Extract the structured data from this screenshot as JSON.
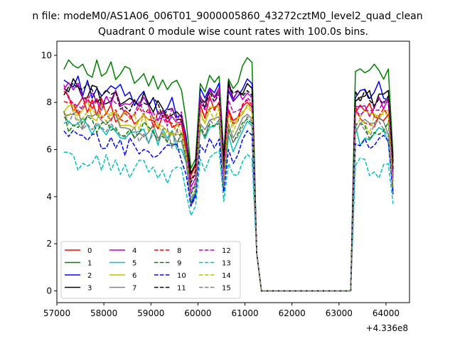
{
  "chart_data": {
    "type": "line",
    "title_main": "n file: modeM0/AS1A06_006T01_9000005860_43272cztM0_level2_quad_clean",
    "title_sub": "Quadrant 0 module wise count rates with 100.0s bins.",
    "xlabel": "",
    "ylabel": "",
    "x_offset_label": "+4.336e8",
    "xlim": [
      57000,
      64500
    ],
    "ylim": [
      -0.5,
      10.6
    ],
    "x_ticks": [
      57000,
      58000,
      59000,
      60000,
      61000,
      62000,
      63000,
      64000
    ],
    "x_tick_labels": [
      "57000",
      "58000",
      "59000",
      "60000",
      "61000",
      "62000",
      "63000",
      "64000"
    ],
    "y_ticks": [
      0,
      2,
      4,
      6,
      8,
      10
    ],
    "y_tick_labels": [
      "0",
      "2",
      "4",
      "6",
      "8",
      "10"
    ],
    "grid": false,
    "legend_position": "lower-left",
    "legend_columns": 4,
    "segments": [
      {
        "x_start": 57150,
        "x_end": 61050,
        "step": 100
      },
      {
        "x_start": 63250,
        "x_end": 64150,
        "step": 100
      }
    ],
    "series": [
      {
        "name": "0",
        "color": "#ff0000",
        "dashed": false,
        "base": 8.1,
        "end": 7.0,
        "post": 7.6,
        "dip": 4.9,
        "pk1": 7.9,
        "pk2": 7.7,
        "pk3": 8.0
      },
      {
        "name": "1",
        "color": "#008000",
        "dashed": false,
        "base": 9.8,
        "end": 8.5,
        "post": 9.2,
        "dip": 5.2,
        "pk1": 8.8,
        "pk2": 9.0,
        "pk3": 9.9
      },
      {
        "name": "2",
        "color": "#0000ff",
        "dashed": false,
        "base": 8.9,
        "end": 7.7,
        "post": 8.5,
        "dip": 3.7,
        "pk1": 8.6,
        "pk2": 8.5,
        "pk3": 9.0
      },
      {
        "name": "3",
        "color": "#000000",
        "dashed": false,
        "base": 8.7,
        "end": 7.6,
        "post": 8.2,
        "dip": 5.0,
        "pk1": 8.2,
        "pk2": 8.9,
        "pk3": 8.8
      },
      {
        "name": "4",
        "color": "#bf00bf",
        "dashed": false,
        "base": 8.6,
        "end": 7.4,
        "post": 7.8,
        "dip": 4.4,
        "pk1": 8.3,
        "pk2": 8.7,
        "pk3": 8.4
      },
      {
        "name": "5",
        "color": "#00bfbf",
        "dashed": false,
        "base": 7.0,
        "end": 6.4,
        "post": 6.6,
        "dip": 3.8,
        "pk1": 6.9,
        "pk2": 6.6,
        "pk3": 7.2
      },
      {
        "name": "6",
        "color": "#bfbf00",
        "dashed": false,
        "base": 7.9,
        "end": 6.9,
        "post": 7.3,
        "dip": 3.6,
        "pk1": 7.6,
        "pk2": 7.6,
        "pk3": 7.9
      },
      {
        "name": "7",
        "color": "#808080",
        "dashed": false,
        "base": 7.5,
        "end": 6.5,
        "post": 7.0,
        "dip": 3.6,
        "pk1": 7.1,
        "pk2": 7.1,
        "pk3": 7.5
      },
      {
        "name": "8",
        "color": "#ff0000",
        "dashed": true,
        "base": 8.0,
        "end": 7.1,
        "post": 7.4,
        "dip": 4.7,
        "pk1": 7.7,
        "pk2": 7.6,
        "pk3": 8.1
      },
      {
        "name": "9",
        "color": "#008000",
        "dashed": true,
        "base": 7.2,
        "end": 6.6,
        "post": 6.8,
        "dip": 4.1,
        "pk1": 7.0,
        "pk2": 6.9,
        "pk3": 7.3
      },
      {
        "name": "10",
        "color": "#0000ff",
        "dashed": true,
        "base": 6.5,
        "end": 5.8,
        "post": 6.3,
        "dip": 3.6,
        "pk1": 6.2,
        "pk2": 6.0,
        "pk3": 6.8
      },
      {
        "name": "11",
        "color": "#000000",
        "dashed": true,
        "base": 8.6,
        "end": 7.6,
        "post": 8.1,
        "dip": 4.6,
        "pk1": 8.1,
        "pk2": 8.8,
        "pk3": 8.5
      },
      {
        "name": "12",
        "color": "#bf00bf",
        "dashed": true,
        "base": 8.3,
        "end": 7.3,
        "post": 7.7,
        "dip": 4.2,
        "pk1": 8.0,
        "pk2": 8.1,
        "pk3": 8.2
      },
      {
        "name": "13",
        "color": "#00bfbf",
        "dashed": true,
        "base": 5.6,
        "end": 4.9,
        "post": 5.2,
        "dip": 3.2,
        "pk1": 5.6,
        "pk2": 5.4,
        "pk3": 5.8
      },
      {
        "name": "14",
        "color": "#bfbf00",
        "dashed": true,
        "base": 7.6,
        "end": 6.8,
        "post": 7.1,
        "dip": 3.9,
        "pk1": 7.4,
        "pk2": 7.5,
        "pk3": 7.8
      },
      {
        "name": "15",
        "color": "#808080",
        "dashed": true,
        "base": 7.2,
        "end": 6.4,
        "post": 6.8,
        "dip": 3.9,
        "pk1": 6.9,
        "pk2": 6.8,
        "pk3": 7.4
      }
    ]
  }
}
